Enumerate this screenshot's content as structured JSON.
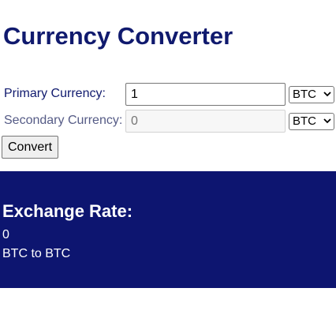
{
  "app": {
    "title": "Currency Converter"
  },
  "form": {
    "primary": {
      "label": "Primary Currency:",
      "value": "1",
      "currency": "BTC"
    },
    "secondary": {
      "label": "Secondary Currency:",
      "placeholder": "0",
      "currency": "BTC"
    },
    "convert_label": "Convert"
  },
  "result": {
    "heading": "Exchange Rate:",
    "value": "0",
    "pair_text": "BTC to BTC"
  },
  "colors": {
    "title": "#101a6e",
    "panel_background": "#0d1570",
    "panel_text": "#ffffff"
  },
  "icons": {
    "select_arrow": "chevron-down-icon"
  }
}
